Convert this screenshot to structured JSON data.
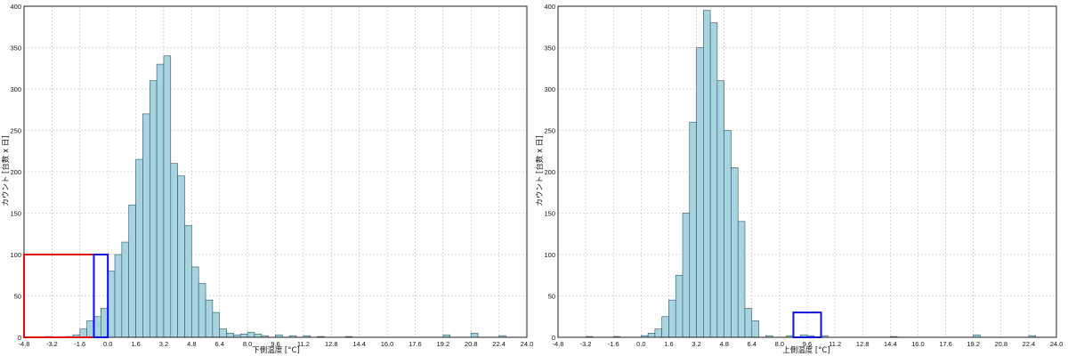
{
  "chart_data": [
    {
      "type": "bar",
      "title": "",
      "xlabel": "下側温度 [°C]",
      "ylabel": "カウント [台数 x 日]",
      "xlim": [
        -4.8,
        24.0
      ],
      "ylim": [
        0,
        400
      ],
      "grid": true,
      "bin_width": 0.4,
      "bar_color": "#a8d4e0",
      "x_ticks": [
        "-4.8",
        "-3.2",
        "-1.6",
        "0.0",
        "1.6",
        "3.2",
        "4.8",
        "6.4",
        "8.0",
        "9.6",
        "11.2",
        "12.8",
        "14.4",
        "16.0",
        "17.6",
        "19.2",
        "20.8",
        "22.4",
        "24.0"
      ],
      "y_ticks": [
        "0",
        "50",
        "100",
        "150",
        "200",
        "250",
        "300",
        "350",
        "400"
      ],
      "series": [
        {
          "x": [
            -3.6,
            -2.4,
            -2.0,
            -1.6,
            -1.2,
            -0.8,
            -0.4,
            0.0,
            0.4,
            0.8,
            1.2,
            1.6,
            2.0,
            2.4,
            2.8,
            3.2,
            3.6,
            4.0,
            4.4,
            4.8,
            5.2,
            5.6,
            6.0,
            6.4,
            6.8,
            7.2,
            7.6,
            8.0,
            8.4,
            8.8,
            9.6,
            10.4,
            11.2,
            12.0,
            13.6,
            19.2,
            20.8,
            22.4
          ],
          "values": [
            1,
            1,
            3,
            10,
            20,
            25,
            35,
            80,
            100,
            115,
            160,
            215,
            270,
            310,
            330,
            340,
            210,
            195,
            135,
            85,
            65,
            45,
            30,
            10,
            5,
            3,
            4,
            6,
            4,
            2,
            3,
            2,
            2,
            1,
            1,
            3,
            5,
            2
          ]
        }
      ],
      "annotations": [
        {
          "shape": "rect",
          "color": "#e01010",
          "x0": -4.8,
          "x1": -0.8,
          "y0": 0,
          "y1": 100
        },
        {
          "shape": "rect",
          "color": "#1010e0",
          "x0": -0.8,
          "x1": 0.0,
          "y0": 0,
          "y1": 100
        }
      ]
    },
    {
      "type": "bar",
      "title": "",
      "xlabel": "上側温度 [°C]",
      "ylabel": "カウント [台数 x 日]",
      "xlim": [
        -4.8,
        24.0
      ],
      "ylim": [
        0,
        400
      ],
      "grid": true,
      "bin_width": 0.4,
      "bar_color": "#a8d4e0",
      "x_ticks": [
        "-4.8",
        "-3.2",
        "-1.6",
        "0.0",
        "1.6",
        "3.2",
        "4.8",
        "6.4",
        "8.0",
        "9.6",
        "11.2",
        "12.8",
        "14.4",
        "16.0",
        "17.6",
        "19.2",
        "20.8",
        "22.4",
        "24.0"
      ],
      "y_ticks": [
        "0",
        "50",
        "100",
        "150",
        "200",
        "250",
        "300",
        "350",
        "400"
      ],
      "series": [
        {
          "x": [
            -3.2,
            -1.6,
            0.0,
            0.4,
            0.8,
            1.2,
            1.6,
            2.0,
            2.4,
            2.8,
            3.2,
            3.6,
            4.0,
            4.4,
            4.8,
            5.2,
            5.6,
            6.0,
            6.4,
            7.2,
            8.4,
            9.2,
            9.6,
            10.4,
            14.4,
            19.2,
            22.4
          ],
          "values": [
            1,
            1,
            2,
            5,
            10,
            25,
            45,
            75,
            150,
            260,
            350,
            395,
            380,
            310,
            250,
            205,
            140,
            35,
            20,
            2,
            2,
            3,
            2,
            2,
            1,
            3,
            2
          ]
        }
      ],
      "annotations": [
        {
          "shape": "rect",
          "color": "#1010e0",
          "x0": 8.8,
          "x1": 10.4,
          "y0": 0,
          "y1": 30
        }
      ]
    }
  ]
}
